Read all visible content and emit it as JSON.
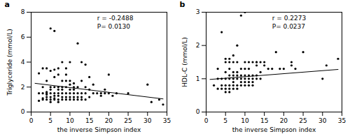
{
  "chart_data": [
    {
      "type": "scatter",
      "title": "a",
      "xlabel": "the inverse Simpson index",
      "ylabel": "Triglyceride (mmol/L)",
      "xlim": [
        0,
        35
      ],
      "ylim": [
        0,
        8
      ],
      "xticks": [
        0,
        5,
        10,
        15,
        20,
        25,
        30,
        35
      ],
      "yticks": [
        0,
        2,
        4,
        6,
        8
      ],
      "annotations": [
        {
          "text": "r = -0.2488\nP= 0.0130",
          "x": 17,
          "y": 7.8
        }
      ],
      "series": [
        {
          "type": "scatter",
          "color": "#000000",
          "x": [
            2,
            2,
            2,
            3,
            3,
            3,
            3,
            3,
            4,
            4,
            4,
            4,
            4,
            4,
            4,
            5,
            5,
            5,
            5,
            5,
            5,
            5,
            5,
            6,
            6,
            6,
            6,
            6,
            6,
            6,
            6,
            7,
            7,
            7,
            7,
            7,
            7,
            7,
            7,
            8,
            8,
            8,
            8,
            8,
            8,
            8,
            9,
            9,
            9,
            9,
            9,
            9,
            9,
            10,
            10,
            10,
            10,
            10,
            10,
            10,
            11,
            11,
            11,
            11,
            11,
            11,
            12,
            12,
            12,
            12,
            12,
            13,
            13,
            13,
            13,
            13,
            14,
            14,
            14,
            14,
            15,
            15,
            15,
            16,
            16,
            17,
            18,
            18,
            19,
            19,
            20,
            20,
            21,
            22,
            25,
            30,
            31,
            33,
            34
          ],
          "values": [
            0.9,
            1.5,
            3.1,
            1.0,
            1.1,
            1.5,
            2.0,
            3.5,
            1.0,
            1.2,
            1.4,
            1.5,
            1.6,
            2.5,
            3.5,
            0.8,
            1.0,
            1.2,
            1.5,
            1.8,
            2.0,
            3.3,
            6.7,
            1.0,
            1.1,
            1.3,
            1.5,
            2.0,
            2.8,
            3.4,
            6.5,
            0.8,
            1.0,
            1.3,
            1.5,
            1.8,
            2.0,
            3.0,
            3.5,
            1.0,
            1.2,
            1.5,
            1.8,
            2.0,
            2.5,
            4.0,
            1.0,
            1.2,
            1.5,
            2.0,
            2.5,
            3.0,
            3.5,
            1.0,
            1.2,
            1.5,
            1.8,
            2.2,
            2.5,
            4.0,
            1.0,
            1.2,
            1.5,
            1.8,
            2.0,
            2.3,
            1.0,
            1.2,
            1.5,
            2.0,
            5.5,
            1.0,
            1.2,
            1.5,
            2.5,
            4.0,
            1.0,
            1.5,
            2.0,
            3.8,
            1.2,
            1.8,
            2.8,
            1.5,
            2.2,
            1.5,
            1.3,
            1.5,
            1.5,
            1.8,
            1.5,
            3.0,
            1.3,
            1.5,
            1.5,
            2.2,
            0.8,
            1.0,
            0.6
          ]
        },
        {
          "type": "line",
          "color": "#000000",
          "x": [
            1,
            34
          ],
          "values": [
            2.3,
            1.05
          ]
        }
      ]
    },
    {
      "type": "scatter",
      "title": "b",
      "xlabel": "the inverse Simpson index",
      "ylabel": "HDL-C (mmol/L)",
      "xlim": [
        0,
        35
      ],
      "ylim": [
        0,
        3
      ],
      "xticks": [
        0,
        5,
        10,
        15,
        20,
        25,
        30,
        35
      ],
      "yticks": [
        0,
        1,
        2,
        3
      ],
      "annotations": [
        {
          "text": "r = 0.2273\nP= 0.0237",
          "x": 17,
          "y": 2.93
        }
      ],
      "series": [
        {
          "type": "scatter",
          "color": "#000000",
          "x": [
            2,
            3,
            3,
            3,
            4,
            4,
            4,
            4,
            5,
            5,
            5,
            5,
            5,
            5,
            5,
            6,
            6,
            6,
            6,
            6,
            6,
            6,
            6,
            7,
            7,
            7,
            7,
            7,
            7,
            7,
            7,
            8,
            8,
            8,
            8,
            8,
            8,
            8,
            9,
            9,
            9,
            9,
            9,
            9,
            10,
            10,
            10,
            10,
            10,
            10,
            10,
            11,
            11,
            11,
            11,
            11,
            11,
            12,
            12,
            12,
            12,
            12,
            13,
            13,
            13,
            13,
            13,
            14,
            14,
            14,
            15,
            15,
            16,
            17,
            18,
            19,
            20,
            22,
            22,
            23,
            25,
            30,
            31,
            34
          ],
          "values": [
            0.8,
            0.7,
            1.0,
            1.3,
            0.7,
            0.8,
            1.0,
            2.4,
            0.6,
            0.7,
            0.8,
            1.0,
            1.2,
            1.5,
            1.6,
            0.6,
            0.7,
            0.8,
            1.0,
            1.1,
            1.3,
            1.5,
            1.6,
            0.7,
            0.8,
            0.9,
            1.0,
            1.1,
            1.2,
            1.5,
            1.7,
            0.7,
            0.8,
            1.0,
            1.1,
            1.2,
            1.5,
            2.0,
            0.8,
            0.9,
            1.0,
            1.1,
            1.3,
            2.9,
            0.8,
            0.9,
            1.0,
            1.1,
            1.3,
            1.5,
            3.0,
            0.8,
            0.9,
            1.0,
            1.1,
            1.3,
            1.5,
            0.8,
            0.9,
            1.0,
            1.1,
            1.5,
            1.0,
            1.1,
            1.4,
            1.5,
            1.5,
            1.0,
            1.2,
            1.5,
            1.4,
            1.5,
            1.3,
            1.3,
            1.8,
            1.3,
            1.3,
            1.4,
            1.5,
            1.3,
            1.8,
            1.0,
            1.4,
            1.6
          ]
        },
        {
          "type": "line",
          "color": "#000000",
          "x": [
            1,
            34
          ],
          "values": [
            0.98,
            1.28
          ]
        }
      ]
    }
  ]
}
